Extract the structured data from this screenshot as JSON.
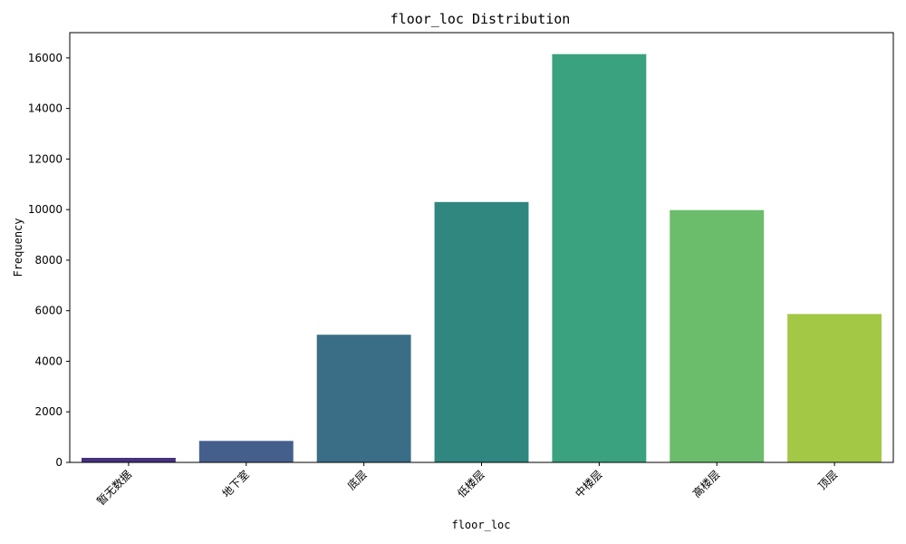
{
  "chart_data": {
    "type": "bar",
    "title": "floor_loc Distribution",
    "xlabel": "floor_loc",
    "ylabel": "Frequency",
    "categories": [
      "暂无数据",
      "地下室",
      "底层",
      "低楼层",
      "中楼层",
      "高楼层",
      "顶层"
    ],
    "values": [
      180,
      850,
      5050,
      10300,
      16150,
      9980,
      5870
    ],
    "colors": [
      "#46327e",
      "#455f8d",
      "#3a6e86",
      "#2f8780",
      "#3ba27f",
      "#6bbd6b",
      "#a3c845"
    ],
    "ylim": [
      0,
      17000
    ],
    "yticks": [
      0,
      2000,
      4000,
      6000,
      8000,
      10000,
      12000,
      14000,
      16000
    ],
    "grid": false,
    "legend": "none"
  }
}
